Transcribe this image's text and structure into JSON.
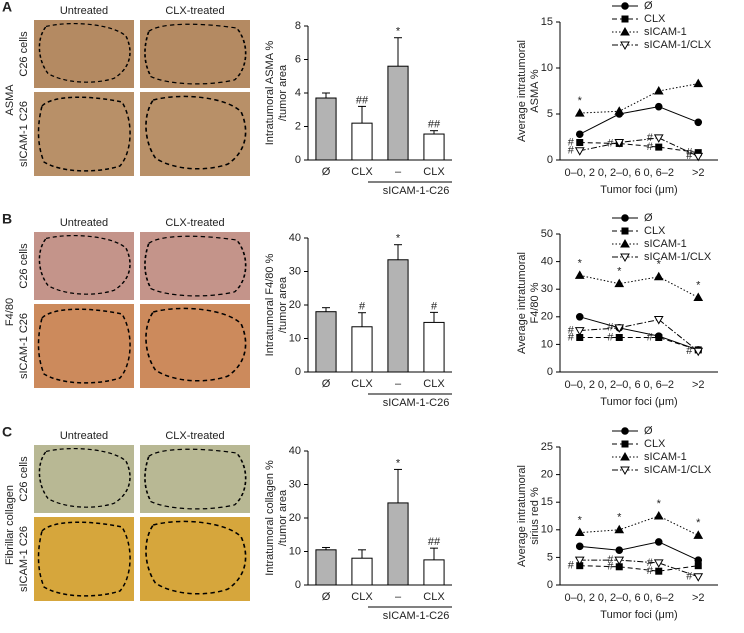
{
  "panels": [
    {
      "letter": "A",
      "row_label": "ASMA",
      "col_labels": [
        "Untreated",
        "CLX-treated"
      ],
      "image_row_labels": [
        "C26 cells",
        "sICAM-1 C26"
      ]
    },
    {
      "letter": "B",
      "row_label": "F4/80",
      "col_labels": [
        "Untreated",
        "CLX-treated"
      ],
      "image_row_labels": [
        "C26 cells",
        "sICAM-1 C26"
      ]
    },
    {
      "letter": "C",
      "row_label": "Fibrillar collagen",
      "col_labels": [
        "Untreated",
        "CLX-treated"
      ],
      "image_row_labels": [
        "C26 cells",
        "sICAM-1 C26"
      ]
    }
  ],
  "chart_data": [
    {
      "type": "bar",
      "ylabel": [
        "Intratumoral ASMA %",
        "/tumor area"
      ],
      "categories": [
        "Ø",
        "CLX",
        "–",
        "CLX"
      ],
      "group_label": "sICAM-1-C26",
      "values": [
        3.7,
        2.2,
        5.6,
        1.55
      ],
      "errors": [
        0.3,
        1.0,
        1.7,
        0.2
      ],
      "annotations": [
        null,
        "##",
        "*",
        "##"
      ],
      "colors": [
        "#b3b3b3",
        "#ffffff",
        "#b3b3b3",
        "#ffffff"
      ],
      "ylim": [
        0,
        8
      ],
      "yticks": [
        0,
        2,
        4,
        6,
        8
      ]
    },
    {
      "type": "line",
      "ylabel": [
        "Average intratumoral",
        "ASMA %"
      ],
      "xlabel": "Tumor foci (μm)",
      "categories": [
        "0–0, 2",
        "0, 2–0, 6",
        "0, 6–2",
        ">2"
      ],
      "ylim": [
        0,
        15
      ],
      "yticks": [
        0,
        5,
        10,
        15
      ],
      "series": [
        {
          "name": "Ø",
          "color": "#000000",
          "dash": "solid",
          "marker": "circle",
          "values": [
            2.8,
            5.0,
            5.8,
            4.1
          ],
          "annotations": [
            null,
            null,
            null,
            null
          ]
        },
        {
          "name": "CLX",
          "color": "#000000",
          "dash": "dashed",
          "marker": "square",
          "values": [
            1.9,
            1.8,
            1.4,
            0.8
          ],
          "annotations": [
            "#",
            "#",
            "#",
            "#"
          ]
        },
        {
          "name": "sICAM-1",
          "color": "#000000",
          "dash": "dotted",
          "marker": "triangle",
          "values": [
            5.1,
            5.3,
            7.5,
            8.3
          ],
          "annotations": [
            "*",
            null,
            null,
            null
          ]
        },
        {
          "name": "sICAM-1/CLX",
          "color": "#000000",
          "dash": "dashdot",
          "marker": "triangle-down-open",
          "values": [
            1.0,
            1.9,
            2.4,
            0.4
          ],
          "annotations": [
            "#",
            null,
            "#",
            "#"
          ]
        }
      ]
    },
    {
      "type": "bar",
      "ylabel": [
        "Intratumoral F4/80 %",
        "/tumor area"
      ],
      "categories": [
        "Ø",
        "CLX",
        "–",
        "CLX"
      ],
      "group_label": "sICAM-1-C26",
      "values": [
        18,
        13.5,
        33.5,
        14.8
      ],
      "errors": [
        1.2,
        4.2,
        4.5,
        3
      ],
      "annotations": [
        null,
        "#",
        "*",
        "#"
      ],
      "colors": [
        "#b3b3b3",
        "#ffffff",
        "#b3b3b3",
        "#ffffff"
      ],
      "ylim": [
        0,
        40
      ],
      "yticks": [
        0,
        10,
        20,
        30,
        40
      ]
    },
    {
      "type": "line",
      "ylabel": [
        "Average intratumoral",
        "F4/80 %"
      ],
      "xlabel": "Tumor foci (μm)",
      "categories": [
        "0–0, 2",
        "0, 2–0, 6",
        "0, 6–2",
        ">2"
      ],
      "ylim": [
        0,
        50
      ],
      "yticks": [
        0,
        10,
        20,
        30,
        40,
        50
      ],
      "series": [
        {
          "name": "Ø",
          "color": "#000000",
          "dash": "solid",
          "marker": "circle",
          "values": [
            20,
            16,
            13,
            8
          ],
          "annotations": [
            null,
            null,
            null,
            null
          ]
        },
        {
          "name": "CLX",
          "color": "#000000",
          "dash": "dashed",
          "marker": "square",
          "values": [
            12.5,
            12.5,
            12.5,
            8
          ],
          "annotations": [
            "#",
            "#",
            "#",
            null
          ]
        },
        {
          "name": "sICAM-1",
          "color": "#000000",
          "dash": "dotted",
          "marker": "triangle",
          "values": [
            35,
            32,
            34.5,
            27
          ],
          "annotations": [
            "*",
            "*",
            "*",
            "*"
          ]
        },
        {
          "name": "sICAM-1/CLX",
          "color": "#000000",
          "dash": "dashdot",
          "marker": "triangle-down-open",
          "values": [
            15,
            16,
            19,
            7.5
          ],
          "annotations": [
            "#",
            "#",
            null,
            "#"
          ]
        }
      ]
    },
    {
      "type": "bar",
      "ylabel": [
        "Intratumoral collagen %",
        "/tumor area"
      ],
      "categories": [
        "Ø",
        "CLX",
        "–",
        "CLX"
      ],
      "group_label": "sICAM-1-C26",
      "values": [
        10.5,
        8,
        24.5,
        7.5
      ],
      "errors": [
        0.7,
        2.5,
        10,
        3.5
      ],
      "annotations": [
        null,
        null,
        "*",
        "##"
      ],
      "colors": [
        "#b3b3b3",
        "#ffffff",
        "#b3b3b3",
        "#ffffff"
      ],
      "ylim": [
        0,
        40
      ],
      "yticks": [
        0,
        10,
        20,
        30,
        40
      ]
    },
    {
      "type": "line",
      "ylabel": [
        "Average intratumoral",
        "sirius red %"
      ],
      "xlabel": "Tumor foci (μm)",
      "categories": [
        "0–0, 2",
        "0, 2–0, 6",
        "0, 6–2",
        ">2"
      ],
      "ylim": [
        0,
        25
      ],
      "yticks": [
        0,
        5,
        10,
        15,
        20,
        25
      ],
      "series": [
        {
          "name": "Ø",
          "color": "#000000",
          "dash": "solid",
          "marker": "circle",
          "values": [
            7,
            6.3,
            7.8,
            4.5
          ],
          "annotations": [
            null,
            null,
            null,
            null
          ]
        },
        {
          "name": "CLX",
          "color": "#000000",
          "dash": "dashed",
          "marker": "square",
          "values": [
            3.5,
            3.3,
            2.5,
            3.5
          ],
          "annotations": [
            "#",
            "#",
            "#",
            null
          ]
        },
        {
          "name": "sICAM-1",
          "color": "#000000",
          "dash": "dotted",
          "marker": "triangle",
          "values": [
            9.5,
            10,
            12.5,
            9
          ],
          "annotations": [
            "*",
            "*",
            "*",
            "*"
          ]
        },
        {
          "name": "sICAM-1/CLX",
          "color": "#000000",
          "dash": "dashdot",
          "marker": "triangle-down-open",
          "values": [
            4.5,
            4.5,
            4,
            1.5
          ],
          "annotations": [
            null,
            "#",
            "#",
            "#"
          ]
        }
      ]
    }
  ]
}
